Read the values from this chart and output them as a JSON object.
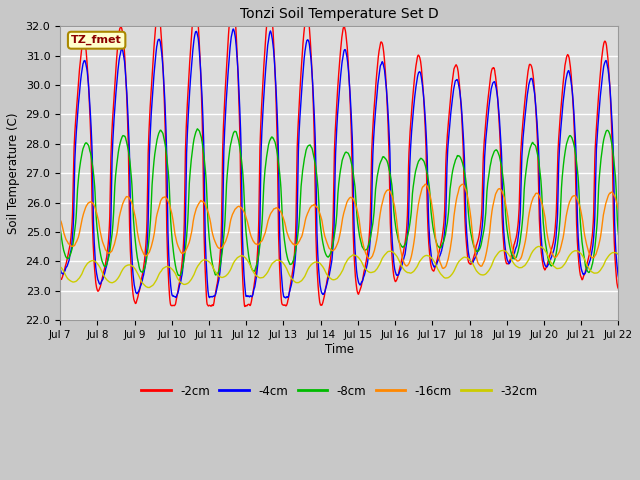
{
  "title": "Tonzi Soil Temperature Set D",
  "ylabel": "Soil Temperature (C)",
  "xlabel": "Time",
  "ylim": [
    22.0,
    32.0
  ],
  "yticks": [
    22.0,
    23.0,
    24.0,
    25.0,
    26.0,
    27.0,
    28.0,
    29.0,
    30.0,
    31.0,
    32.0
  ],
  "xtick_labels": [
    "Jul 7",
    "Jul 8",
    "Jul 9",
    "Jul 10",
    "Jul 11",
    "Jul 12",
    "Jul 13",
    "Jul 14",
    "Jul 15",
    "Jul 16",
    "Jul 17",
    "Jul 18",
    "Jul 19",
    "Jul 20",
    "Jul 21",
    "Jul 22"
  ],
  "series_colors": [
    "#ff0000",
    "#0000ff",
    "#00bb00",
    "#ff8800",
    "#cccc00"
  ],
  "series_labels": [
    "-2cm",
    "-4cm",
    "-8cm",
    "-16cm",
    "-32cm"
  ],
  "legend_label": "TZ_fmet",
  "plot_bg": "#dcdcdc",
  "fig_bg": "#c8c8c8",
  "n_days": 15,
  "points_per_day": 96
}
